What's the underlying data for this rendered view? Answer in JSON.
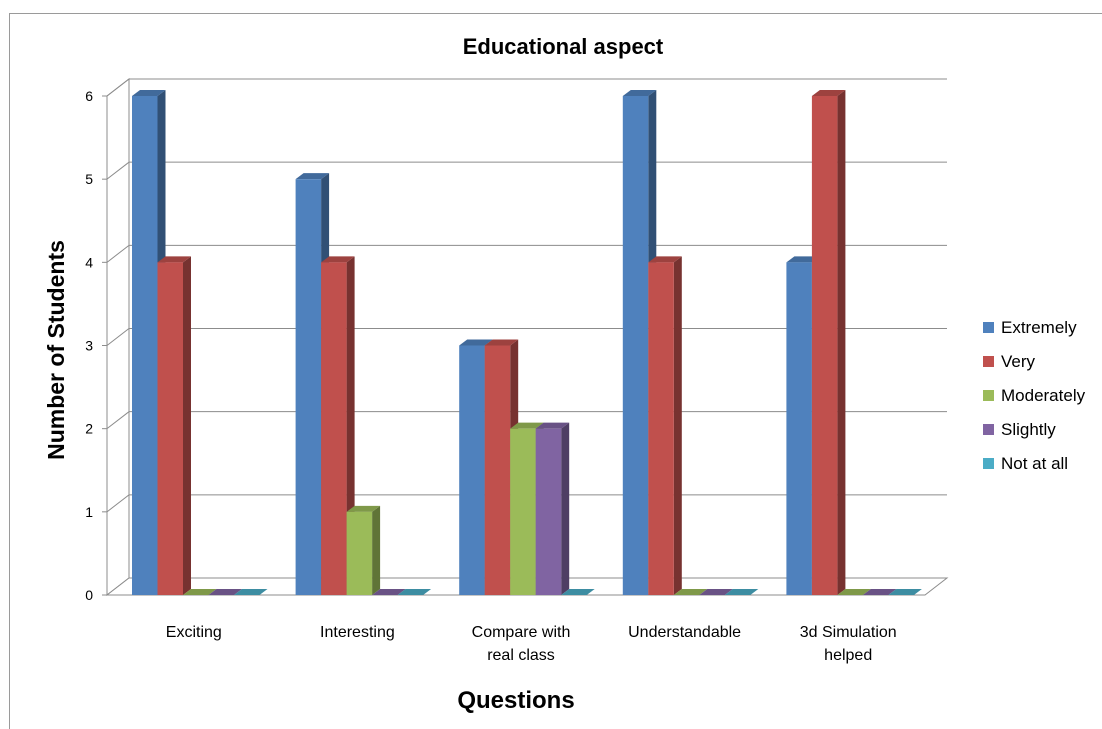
{
  "chart_data": {
    "type": "bar",
    "title": "Educational aspect",
    "xlabel": "Questions",
    "ylabel": "Number of Students",
    "ylim": [
      0,
      6
    ],
    "yticks": [
      "0",
      "1",
      "2",
      "3",
      "4",
      "5",
      "6"
    ],
    "categories": [
      [
        "Exciting"
      ],
      [
        "Interesting"
      ],
      [
        "Compare with",
        "real class"
      ],
      [
        "Understandable"
      ],
      [
        "3d Simulation",
        "helped"
      ]
    ],
    "series": [
      {
        "name": "Extremely",
        "values": [
          6,
          5,
          3,
          6,
          4
        ],
        "color": "#4F81BD"
      },
      {
        "name": "Very",
        "values": [
          4,
          4,
          3,
          4,
          6
        ],
        "color": "#C0504D"
      },
      {
        "name": "Moderately",
        "values": [
          0,
          1,
          2,
          0,
          0
        ],
        "color": "#9BBB59"
      },
      {
        "name": "Slightly",
        "values": [
          0,
          0,
          2,
          0,
          0
        ],
        "color": "#8064A2"
      },
      {
        "name": "Not at all",
        "values": [
          0,
          0,
          0,
          0,
          0
        ],
        "color": "#4BACC6"
      }
    ],
    "grid": true,
    "legend": "right"
  }
}
